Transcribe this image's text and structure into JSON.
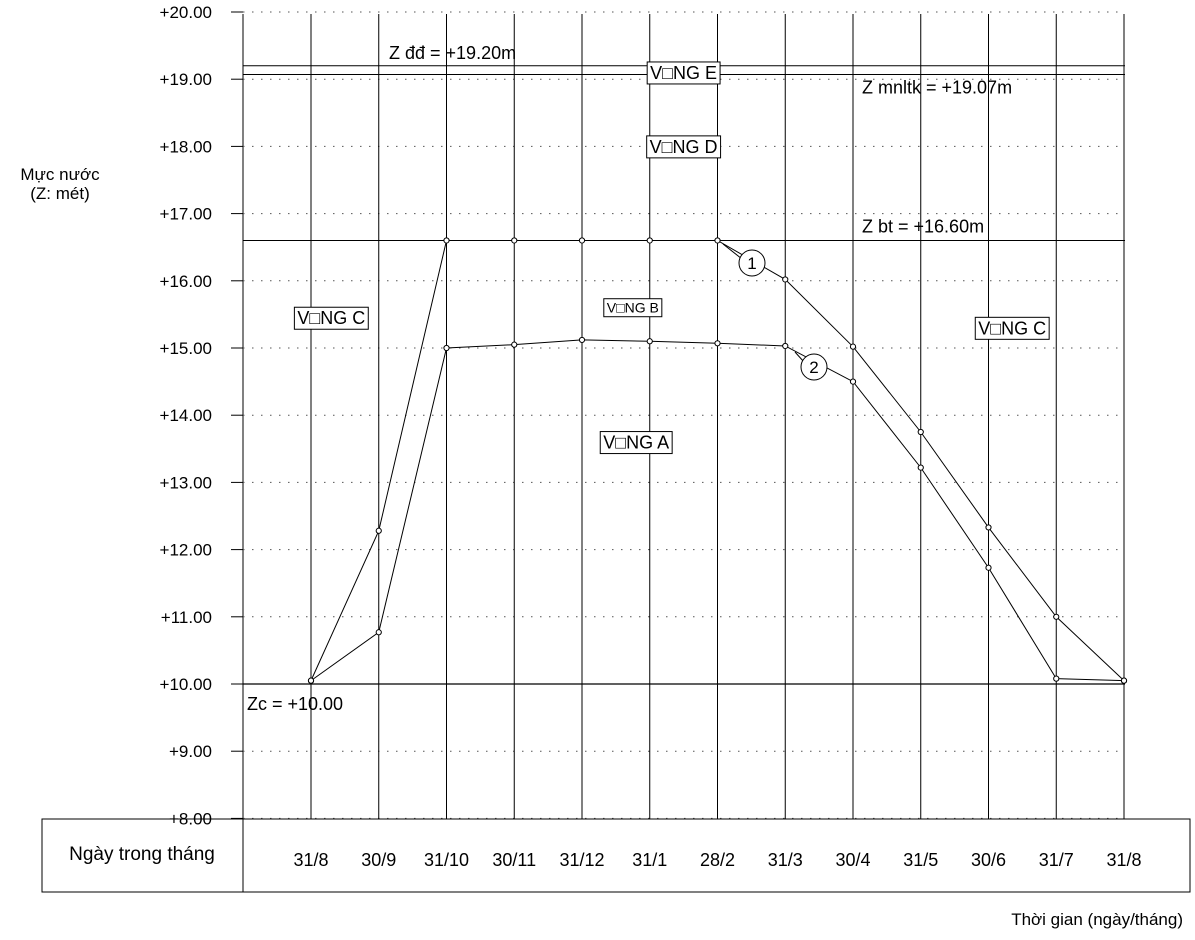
{
  "chart_data": {
    "type": "line",
    "ylabel": [
      "Mực nước",
      "(Z: mét)"
    ],
    "xlabel": "Thời gian (ngày/tháng)",
    "date_row_title": "Ngày trong tháng",
    "ylim": [
      8,
      20
    ],
    "y_ticks": [
      "+8.00",
      "+9.00",
      "+10.00",
      "+11.00",
      "+12.00",
      "+13.00",
      "+14.00",
      "+15.00",
      "+16.00",
      "+17.00",
      "+18.00",
      "+19.00",
      "+20.00"
    ],
    "categories": [
      "31/8",
      "30/9",
      "31/10",
      "30/11",
      "31/12",
      "31/1",
      "28/2",
      "31/3",
      "30/4",
      "31/5",
      "30/6",
      "31/7",
      "31/8"
    ],
    "grid": {
      "horizontal": "dotted",
      "vertical": "solid"
    },
    "series": [
      {
        "name": "1",
        "values": [
          10.05,
          12.28,
          16.6,
          16.6,
          16.6,
          16.6,
          16.6,
          16.02,
          15.02,
          13.75,
          12.33,
          11.0,
          10.05
        ]
      },
      {
        "name": "2",
        "values": [
          10.05,
          10.77,
          15.0,
          15.05,
          15.12,
          15.1,
          15.07,
          15.03,
          14.5,
          13.22,
          11.73,
          10.08,
          10.05
        ]
      }
    ],
    "reference_lines": [
      {
        "label": "Z đđ = +19.20m",
        "value": 19.2
      },
      {
        "label": "Z mnltk = +19.07m",
        "value": 19.07
      },
      {
        "label": "Z bt = +16.60m",
        "value": 16.6
      },
      {
        "label": "Zc  =  +10.00",
        "value": 10.0
      }
    ],
    "zones": [
      {
        "label": "V□NG E",
        "x": 5.5,
        "y": 19.1,
        "small": false
      },
      {
        "label": "V□NG D",
        "x": 5.5,
        "y": 18.0,
        "small": false
      },
      {
        "label": "V□NG C",
        "x": 0.3,
        "y": 15.45,
        "small": false
      },
      {
        "label": "V□NG B",
        "x": 4.75,
        "y": 15.6,
        "small": true
      },
      {
        "label": "V□NG C",
        "x": 10.35,
        "y": 15.3,
        "small": false
      },
      {
        "label": "V□NG A",
        "x": 4.8,
        "y": 13.6,
        "small": false
      }
    ]
  }
}
